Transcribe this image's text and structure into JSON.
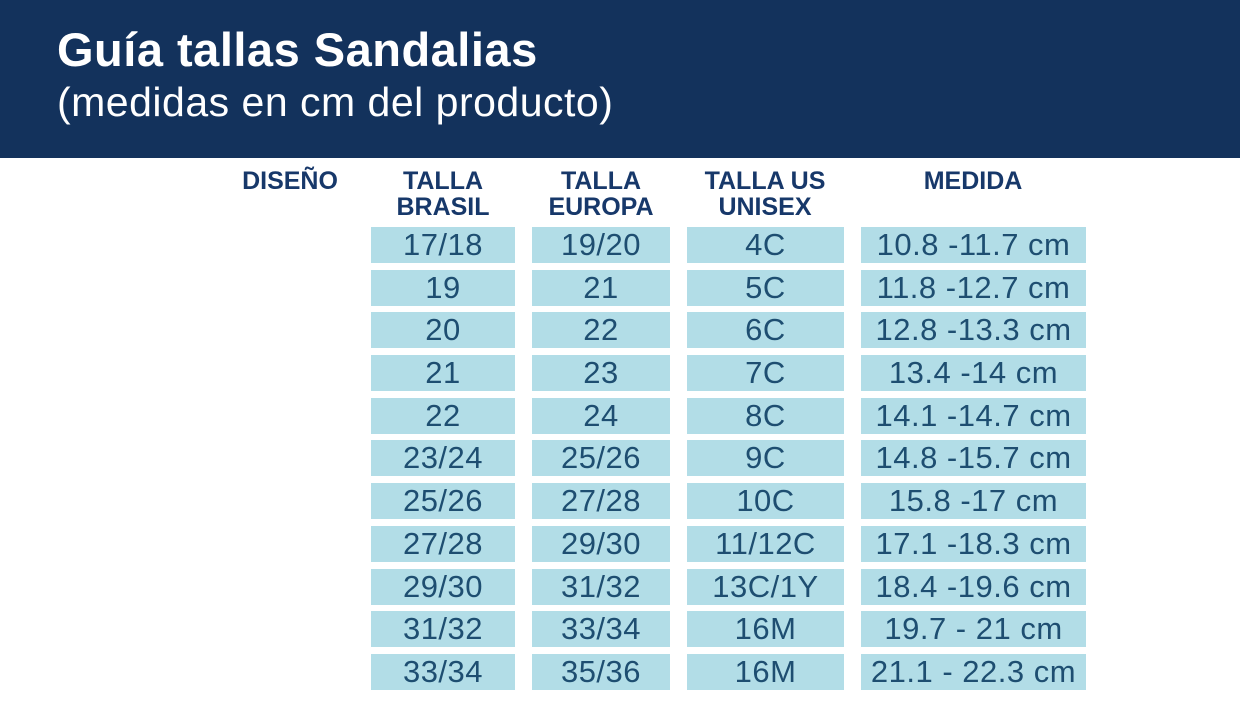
{
  "header": {
    "title": "Guía tallas Sandalias",
    "subtitle": "(medidas en cm del producto)"
  },
  "colors": {
    "banner_navy": "#13325c",
    "header_text_navy": "#17386a",
    "cell_background": "#b2dde7",
    "cell_text": "#1e4e71"
  },
  "table": {
    "columns": {
      "diseno": "DISEÑO",
      "brasil": "TALLA\nBRASIL",
      "europa": "TALLA\nEUROPA",
      "us": "TALLA US\nUNISEX",
      "medida": "MEDIDA"
    },
    "rows": [
      {
        "brasil": "17/18",
        "europa": "19/20",
        "us": "4C",
        "medida": "10.8 -11.7 cm"
      },
      {
        "brasil": "19",
        "europa": "21",
        "us": "5C",
        "medida": "11.8 -12.7 cm"
      },
      {
        "brasil": "20",
        "europa": "22",
        "us": "6C",
        "medida": "12.8 -13.3 cm"
      },
      {
        "brasil": "21",
        "europa": "23",
        "us": "7C",
        "medida": "13.4 -14 cm"
      },
      {
        "brasil": "22",
        "europa": "24",
        "us": "8C",
        "medida": "14.1 -14.7 cm"
      },
      {
        "brasil": "23/24",
        "europa": "25/26",
        "us": "9C",
        "medida": "14.8 -15.7 cm"
      },
      {
        "brasil": "25/26",
        "europa": "27/28",
        "us": "10C",
        "medida": "15.8 -17 cm"
      },
      {
        "brasil": "27/28",
        "europa": "29/30",
        "us": "11/12C",
        "medida": "17.1 -18.3 cm"
      },
      {
        "brasil": "29/30",
        "europa": "31/32",
        "us": "13C/1Y",
        "medida": "18.4 -19.6 cm"
      },
      {
        "brasil": "31/32",
        "europa": "33/34",
        "us": "16M",
        "medida": "19.7 - 21 cm"
      },
      {
        "brasil": "33/34",
        "europa": "35/36",
        "us": "16M",
        "medida": "21.1 - 22.3 cm"
      }
    ]
  }
}
